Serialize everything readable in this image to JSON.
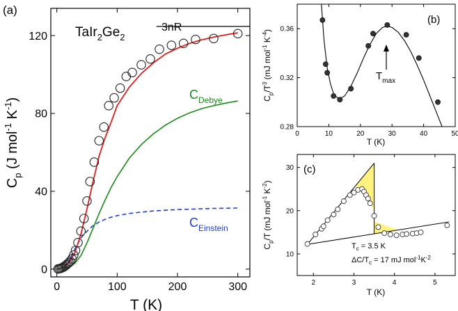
{
  "chart_data": [
    {
      "panel": "(a)",
      "type": "line",
      "compound": "TaIr",
      "compound_sub1": "2",
      "compound_mid": "Ge",
      "compound_sub2": "2",
      "xlabel": "T (K)",
      "ylabel_main": "C",
      "ylabel_sub": "p",
      "ylabel_rest": " (J mol",
      "ylabel_sup1": "-1",
      "ylabel_mid": " K",
      "ylabel_sup2": "-1",
      "ylabel_end": ")",
      "xlim": [
        -10,
        320
      ],
      "ylim": [
        -4,
        134
      ],
      "xticks": [
        0,
        100,
        200,
        300
      ],
      "yticks": [
        0,
        40,
        80,
        120
      ],
      "reference_line": {
        "label": "3nR",
        "y": 124.7,
        "x_range": [
          165,
          320
        ]
      },
      "scatter": {
        "name": "data",
        "x": [
          2,
          4,
          6,
          8,
          10,
          12,
          14,
          16,
          18,
          20,
          22,
          25,
          28,
          31,
          35,
          40,
          45,
          50,
          55,
          62,
          70,
          78,
          86,
          95,
          105,
          115,
          125,
          140,
          155,
          170,
          190,
          210,
          230,
          260,
          300
        ],
        "y": [
          0.1,
          0.2,
          0.4,
          0.6,
          0.9,
          1.3,
          1.7,
          2.2,
          2.8,
          3.3,
          4.0,
          5.3,
          7.2,
          9.6,
          13.6,
          19.5,
          26,
          35,
          45,
          55,
          66,
          73,
          84,
          88,
          93,
          99,
          101,
          105,
          108,
          113,
          115,
          116,
          118,
          118.5,
          121
        ]
      },
      "series": [
        {
          "name": "fit",
          "color": "#e41a1c",
          "style": "solid",
          "x": [
            0,
            10,
            20,
            30,
            40,
            50,
            60,
            70,
            80,
            90,
            100,
            120,
            140,
            160,
            180,
            200,
            220,
            240,
            260,
            280,
            300
          ],
          "y": [
            0,
            0.8,
            3.3,
            8.5,
            18,
            31,
            45,
            58,
            67.5,
            75.5,
            84,
            93.5,
            100.5,
            106,
            110.5,
            113.5,
            116,
            117.8,
            119.2,
            120.4,
            121.4
          ]
        },
        {
          "name": "Debye",
          "label_main": "C",
          "label_sub": "Debye",
          "color": "#1a8a1a",
          "style": "solid",
          "x": [
            0,
            20,
            30,
            40,
            50,
            60,
            70,
            80,
            90,
            100,
            120,
            140,
            160,
            180,
            200,
            220,
            240,
            260,
            280,
            300
          ],
          "y": [
            0,
            1.0,
            3.0,
            7.0,
            13.5,
            21,
            28.5,
            35.5,
            42,
            47.5,
            57,
            64,
            69.5,
            74,
            77.5,
            80.3,
            82.5,
            84.0,
            85.3,
            86.4
          ]
        },
        {
          "name": "Einstein",
          "label_main": "C",
          "label_sub": "Einstein",
          "color": "#1f3fd6",
          "style": "dashed",
          "x": [
            0,
            10,
            20,
            30,
            40,
            50,
            60,
            70,
            80,
            90,
            100,
            120,
            140,
            160,
            180,
            200,
            220,
            240,
            260,
            280,
            300
          ],
          "y": [
            0,
            0.2,
            4,
            10.5,
            16,
            19.5,
            22.3,
            24.2,
            25.6,
            26.7,
            27.5,
            28.6,
            29.3,
            29.9,
            30.3,
            30.6,
            30.8,
            31.0,
            31.2,
            31.3,
            31.4
          ]
        }
      ]
    },
    {
      "panel": "(b)",
      "type": "scatter",
      "xlabel": "T (K)",
      "ylabel_main": "C",
      "ylabel_sub": "p",
      "ylabel_mid": "/T",
      "ylabel_sup": "3",
      "ylabel_rest": " (mJ mol",
      "ylabel_sup1": "-1",
      "ylabel_rest2": " K",
      "ylabel_sup2": "-4",
      "ylabel_end": ")",
      "xlim": [
        0,
        50
      ],
      "ylim": [
        0.28,
        0.38
      ],
      "xticks": [
        0,
        10,
        20,
        30,
        40,
        50
      ],
      "yticks": [
        0.28,
        0.32,
        0.36
      ],
      "ytick_labels": [
        "0.28",
        "0.32",
        "0.36"
      ],
      "annotation": {
        "main": "T",
        "sub": "max"
      },
      "points": {
        "x": [
          8,
          9,
          9.5,
          11.5,
          13.5,
          17,
          22.5,
          24,
          28.5,
          34.5,
          38.5,
          44.5
        ],
        "y": [
          0.367,
          0.331,
          0.324,
          0.305,
          0.302,
          0.311,
          0.346,
          0.356,
          0.363,
          0.355,
          0.336,
          0.3
        ]
      },
      "curve": {
        "x": [
          7.5,
          8.5,
          9.5,
          10.5,
          11.5,
          12.5,
          13.5,
          15,
          17,
          19,
          21,
          23,
          25,
          27,
          28.5,
          30,
          32,
          34,
          36,
          38,
          40,
          42,
          44,
          46,
          47
        ],
        "y": [
          0.385,
          0.35,
          0.328,
          0.315,
          0.307,
          0.304,
          0.303,
          0.305,
          0.313,
          0.324,
          0.336,
          0.347,
          0.356,
          0.361,
          0.362,
          0.361,
          0.357,
          0.35,
          0.341,
          0.33,
          0.318,
          0.305,
          0.292,
          0.279,
          0.272
        ]
      }
    },
    {
      "panel": "(c)",
      "type": "scatter",
      "xlabel": "T (K)",
      "ylabel_main": "C",
      "ylabel_sub": "p",
      "ylabel_rest": "/T (mJ mol",
      "ylabel_sup1": "-1",
      "ylabel_mid": " K",
      "ylabel_sup2": "-2",
      "ylabel_end": ")",
      "xlim": [
        1.6,
        5.5
      ],
      "ylim": [
        5,
        33
      ],
      "xticks": [
        2,
        3,
        4,
        5
      ],
      "yticks": [
        10,
        20,
        30
      ],
      "tc_main": "T",
      "tc_sub": "c",
      "tc_value": " = 3.5 K",
      "dc_main": "ΔC/T",
      "dc_sub": "c",
      "dc_rest": " = 17 mJ mol",
      "dc_sup1": "-1",
      "dc_mid": "K",
      "dc_sup2": "-2",
      "fill_color": "#fff280",
      "points": {
        "x": [
          1.85,
          2.05,
          2.2,
          2.25,
          2.35,
          2.5,
          2.6,
          2.75,
          2.9,
          3.0,
          3.1,
          3.2,
          3.25,
          3.3,
          3.35,
          3.4,
          3.5,
          3.6,
          3.75,
          3.9,
          4.05,
          4.2,
          4.3,
          4.45,
          4.55,
          4.65,
          5.3
        ],
        "y": [
          12.3,
          14.5,
          15.8,
          16.4,
          17.8,
          19.1,
          20.3,
          22.2,
          23.6,
          24.2,
          24.8,
          25.0,
          24.4,
          23.6,
          22.8,
          21.7,
          18.8,
          16.2,
          14.8,
          14.5,
          14.3,
          14.5,
          14.6,
          14.7,
          14.8,
          15.0,
          16.6
        ]
      },
      "line_normal": {
        "x": [
          1.85,
          5.35
        ],
        "y": [
          12.2,
          17.4
        ]
      },
      "line_sc": {
        "x": [
          1.85,
          3.5
        ],
        "y": [
          12.2,
          31.0
        ]
      },
      "jump": {
        "x": 3.5,
        "y_top": 31.0,
        "y_bottom": 14.6
      }
    }
  ]
}
